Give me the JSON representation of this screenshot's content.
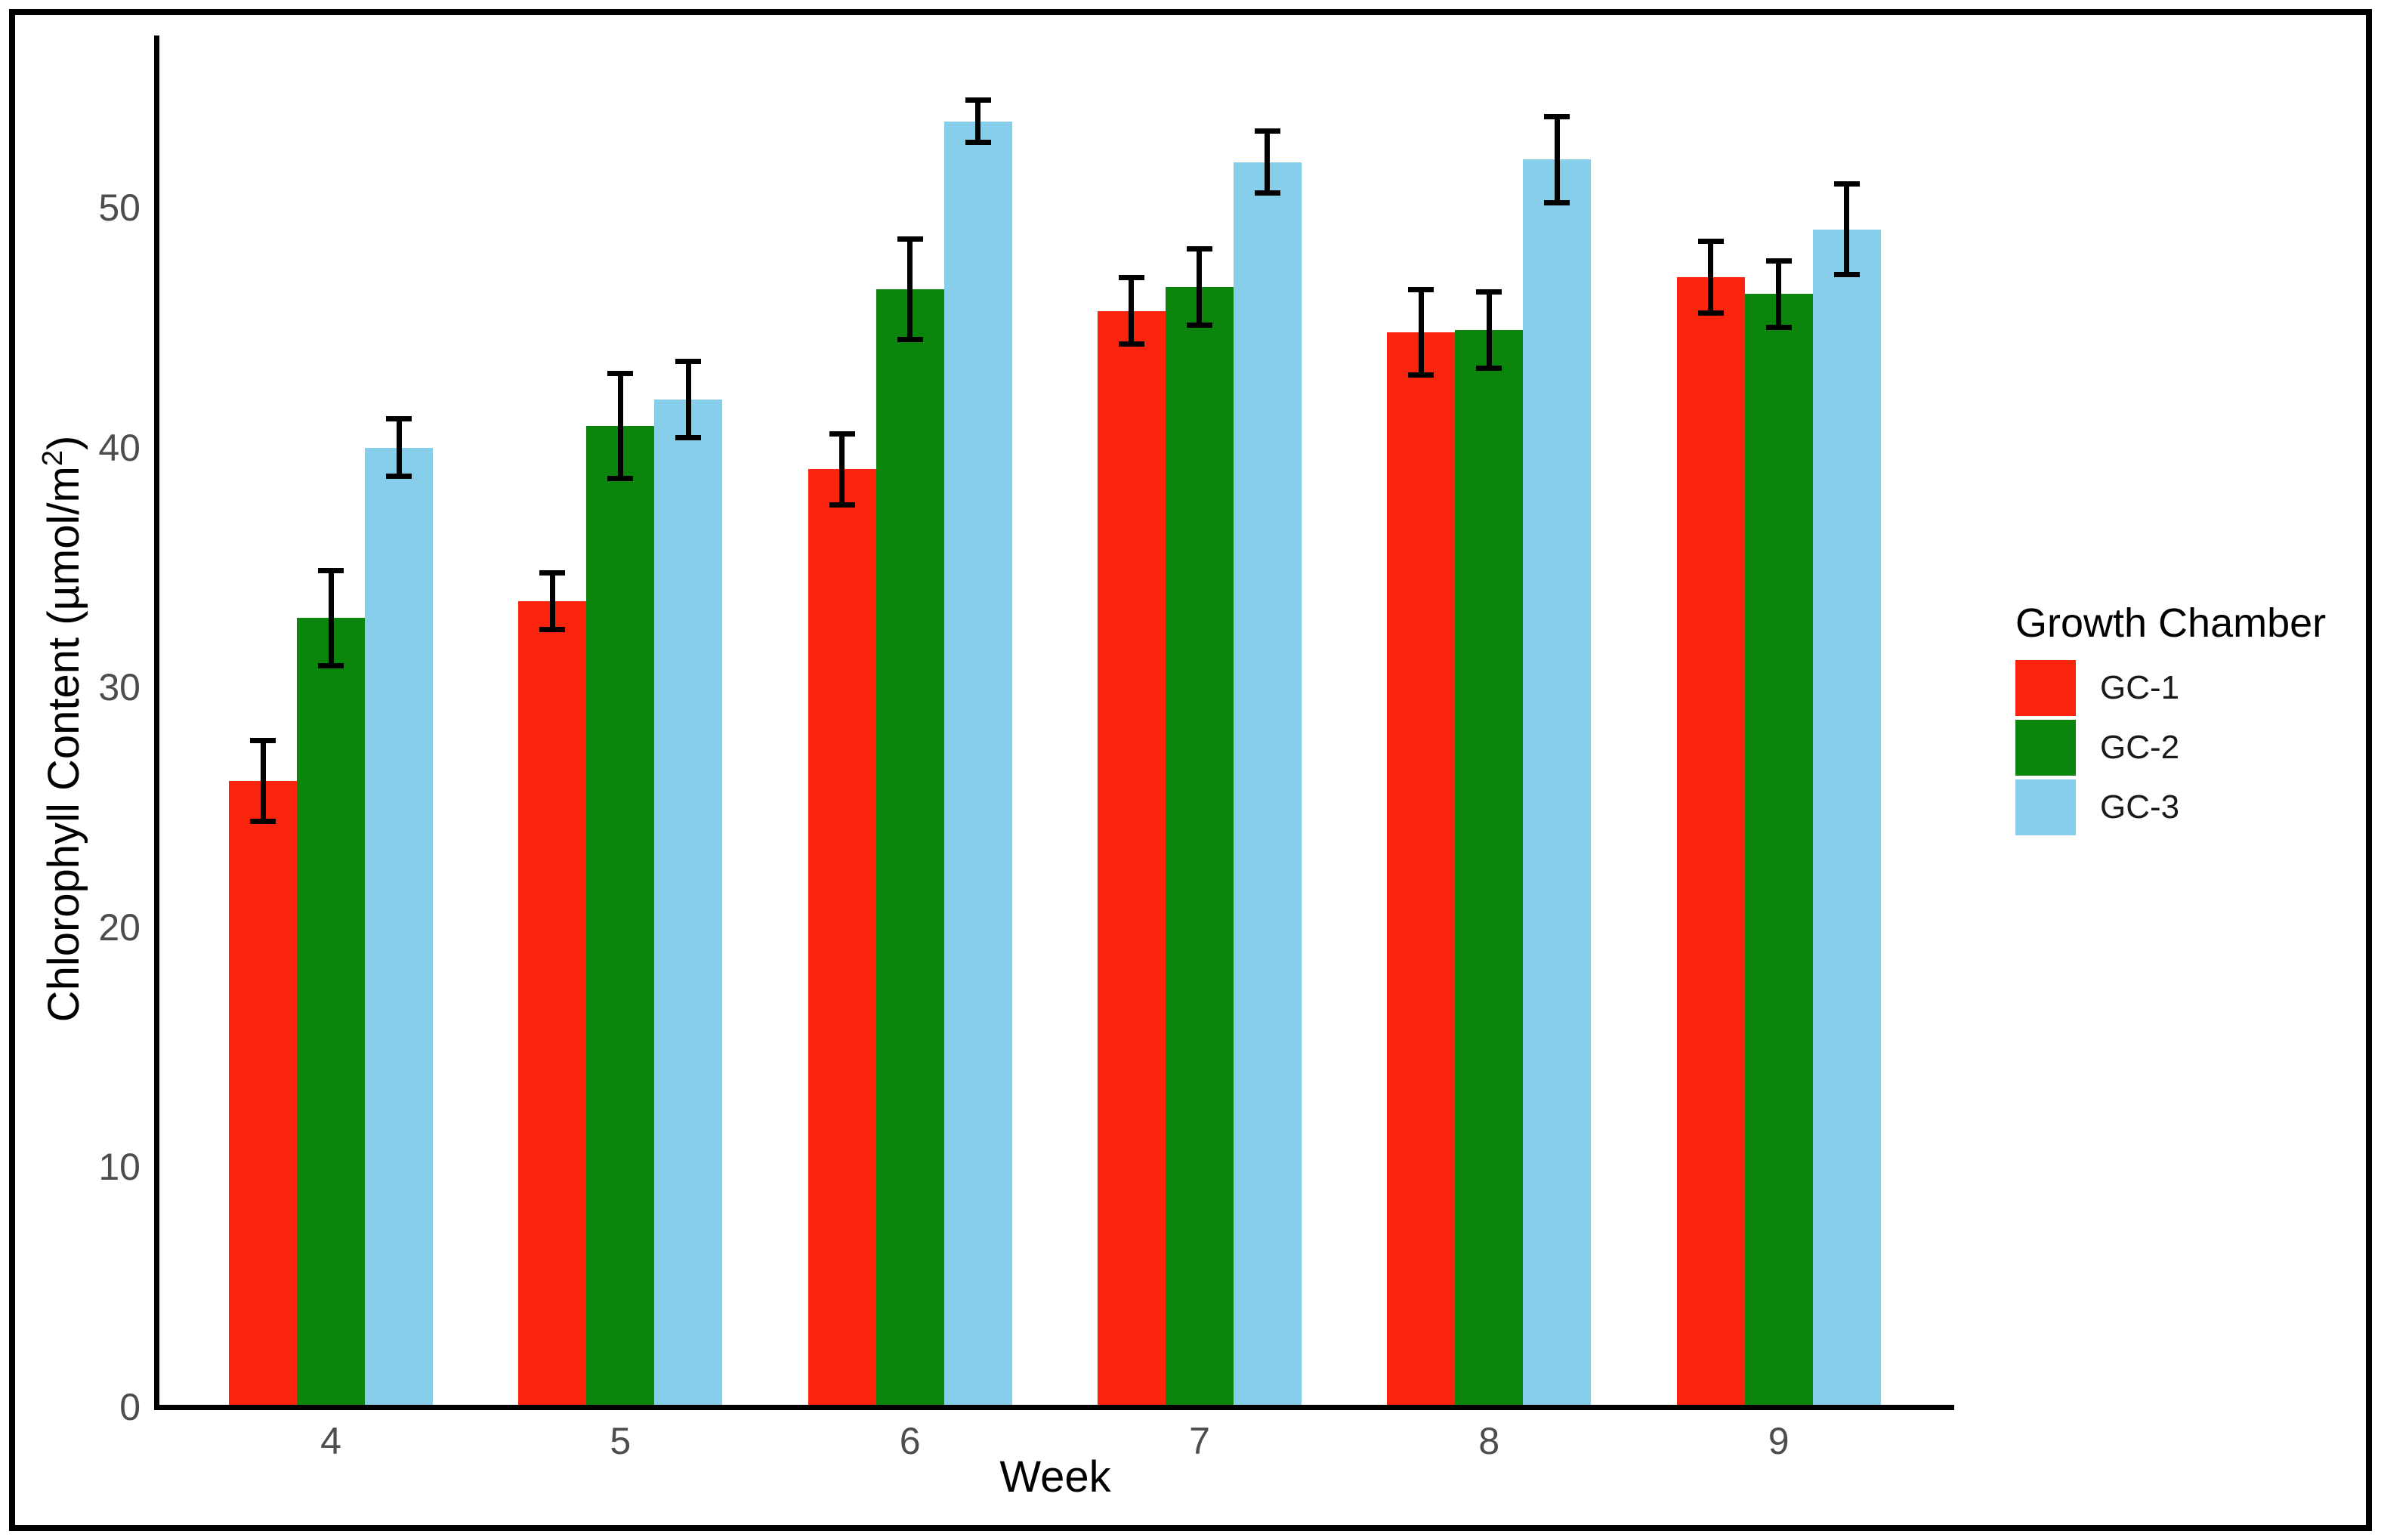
{
  "chart_data": {
    "type": "bar",
    "title": "",
    "xlabel": "Week",
    "ylabel": "Chlorophyll Content (µmol/m²)",
    "ylabel_parts": {
      "prefix": "Chlorophyll Content (µmol/m",
      "sup": "2",
      "suffix": ")"
    },
    "categories": [
      "4",
      "5",
      "6",
      "7",
      "8",
      "9"
    ],
    "series": [
      {
        "name": "GC-1",
        "color": "#fa250c",
        "values": [
          26.1,
          33.6,
          39.1,
          45.7,
          44.8,
          47.1
        ],
        "errors": [
          1.7,
          1.2,
          1.5,
          1.4,
          1.8,
          1.5
        ]
      },
      {
        "name": "GC-2",
        "color": "#0b850b",
        "values": [
          32.9,
          40.9,
          46.6,
          46.7,
          44.9,
          46.4
        ],
        "errors": [
          2.0,
          2.2,
          2.1,
          1.6,
          1.6,
          1.4
        ]
      },
      {
        "name": "GC-3",
        "color": "#87ceeb",
        "values": [
          40.0,
          42.0,
          53.6,
          51.9,
          52.0,
          49.1
        ],
        "errors": [
          1.2,
          1.6,
          0.9,
          1.3,
          1.8,
          1.9
        ]
      }
    ],
    "error_bar_color": "#000000",
    "yticks": [
      0,
      10,
      20,
      30,
      40,
      50
    ],
    "ylim": [
      0,
      57.2
    ],
    "grid": false,
    "legend_title": "Growth Chamber",
    "legend_position": "right",
    "axis_text_color": "#4d4d4d",
    "axis_title_color": "#000000"
  },
  "legend": {
    "title": "Growth Chamber",
    "items": [
      {
        "label": "GC-1",
        "color": "#fa250c"
      },
      {
        "label": "GC-2",
        "color": "#0b850b"
      },
      {
        "label": "GC-3",
        "color": "#87ceeb"
      }
    ]
  }
}
